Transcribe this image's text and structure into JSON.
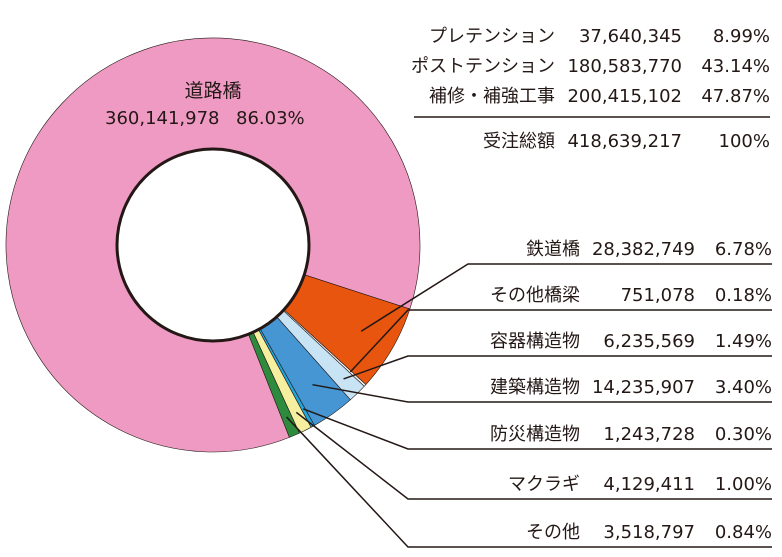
{
  "chart_data": {
    "type": "pie",
    "title": "",
    "colors": {
      "道路橋": "#ef9ac3",
      "鉄道橋": "#e8550f",
      "その他橋梁": "#f2f2f2",
      "容器構造物": "#c8e4f4",
      "建築構造物": "#4596d3",
      "防災構造物": "#1fa6dc",
      "マクラギ": "#f6efa0",
      "その他": "#2e8b3e",
      "leader": "#231815"
    },
    "slices": [
      {
        "label": "道路橋",
        "amount": "360,141,978",
        "percent": "86.03%",
        "value": 86.03
      },
      {
        "label": "鉄道橋",
        "amount": "28,382,749",
        "percent": "6.78%",
        "value": 6.78
      },
      {
        "label": "その他橋梁",
        "amount": "751,078",
        "percent": "0.18%",
        "value": 0.18
      },
      {
        "label": "容器構造物",
        "amount": "6,235,569",
        "percent": "1.49%",
        "value": 1.49
      },
      {
        "label": "建築構造物",
        "amount": "14,235,907",
        "percent": "3.40%",
        "value": 3.4
      },
      {
        "label": "防災構造物",
        "amount": "1,243,728",
        "percent": "0.30%",
        "value": 0.3
      },
      {
        "label": "マクラギ",
        "amount": "4,129,411",
        "percent": "1.00%",
        "value": 1.0
      },
      {
        "label": "その他",
        "amount": "3,518,797",
        "percent": "0.84%",
        "value": 0.84
      }
    ],
    "summary": [
      {
        "label": "プレテンション",
        "amount": "37,640,345",
        "percent": "8.99%"
      },
      {
        "label": "ポストテンション",
        "amount": "180,583,770",
        "percent": "43.14%"
      },
      {
        "label": "補修・補強工事",
        "amount": "200,415,102",
        "percent": "47.87%"
      }
    ],
    "total": {
      "label": "受注総額",
      "amount": "418,639,217",
      "percent": "100%"
    }
  }
}
